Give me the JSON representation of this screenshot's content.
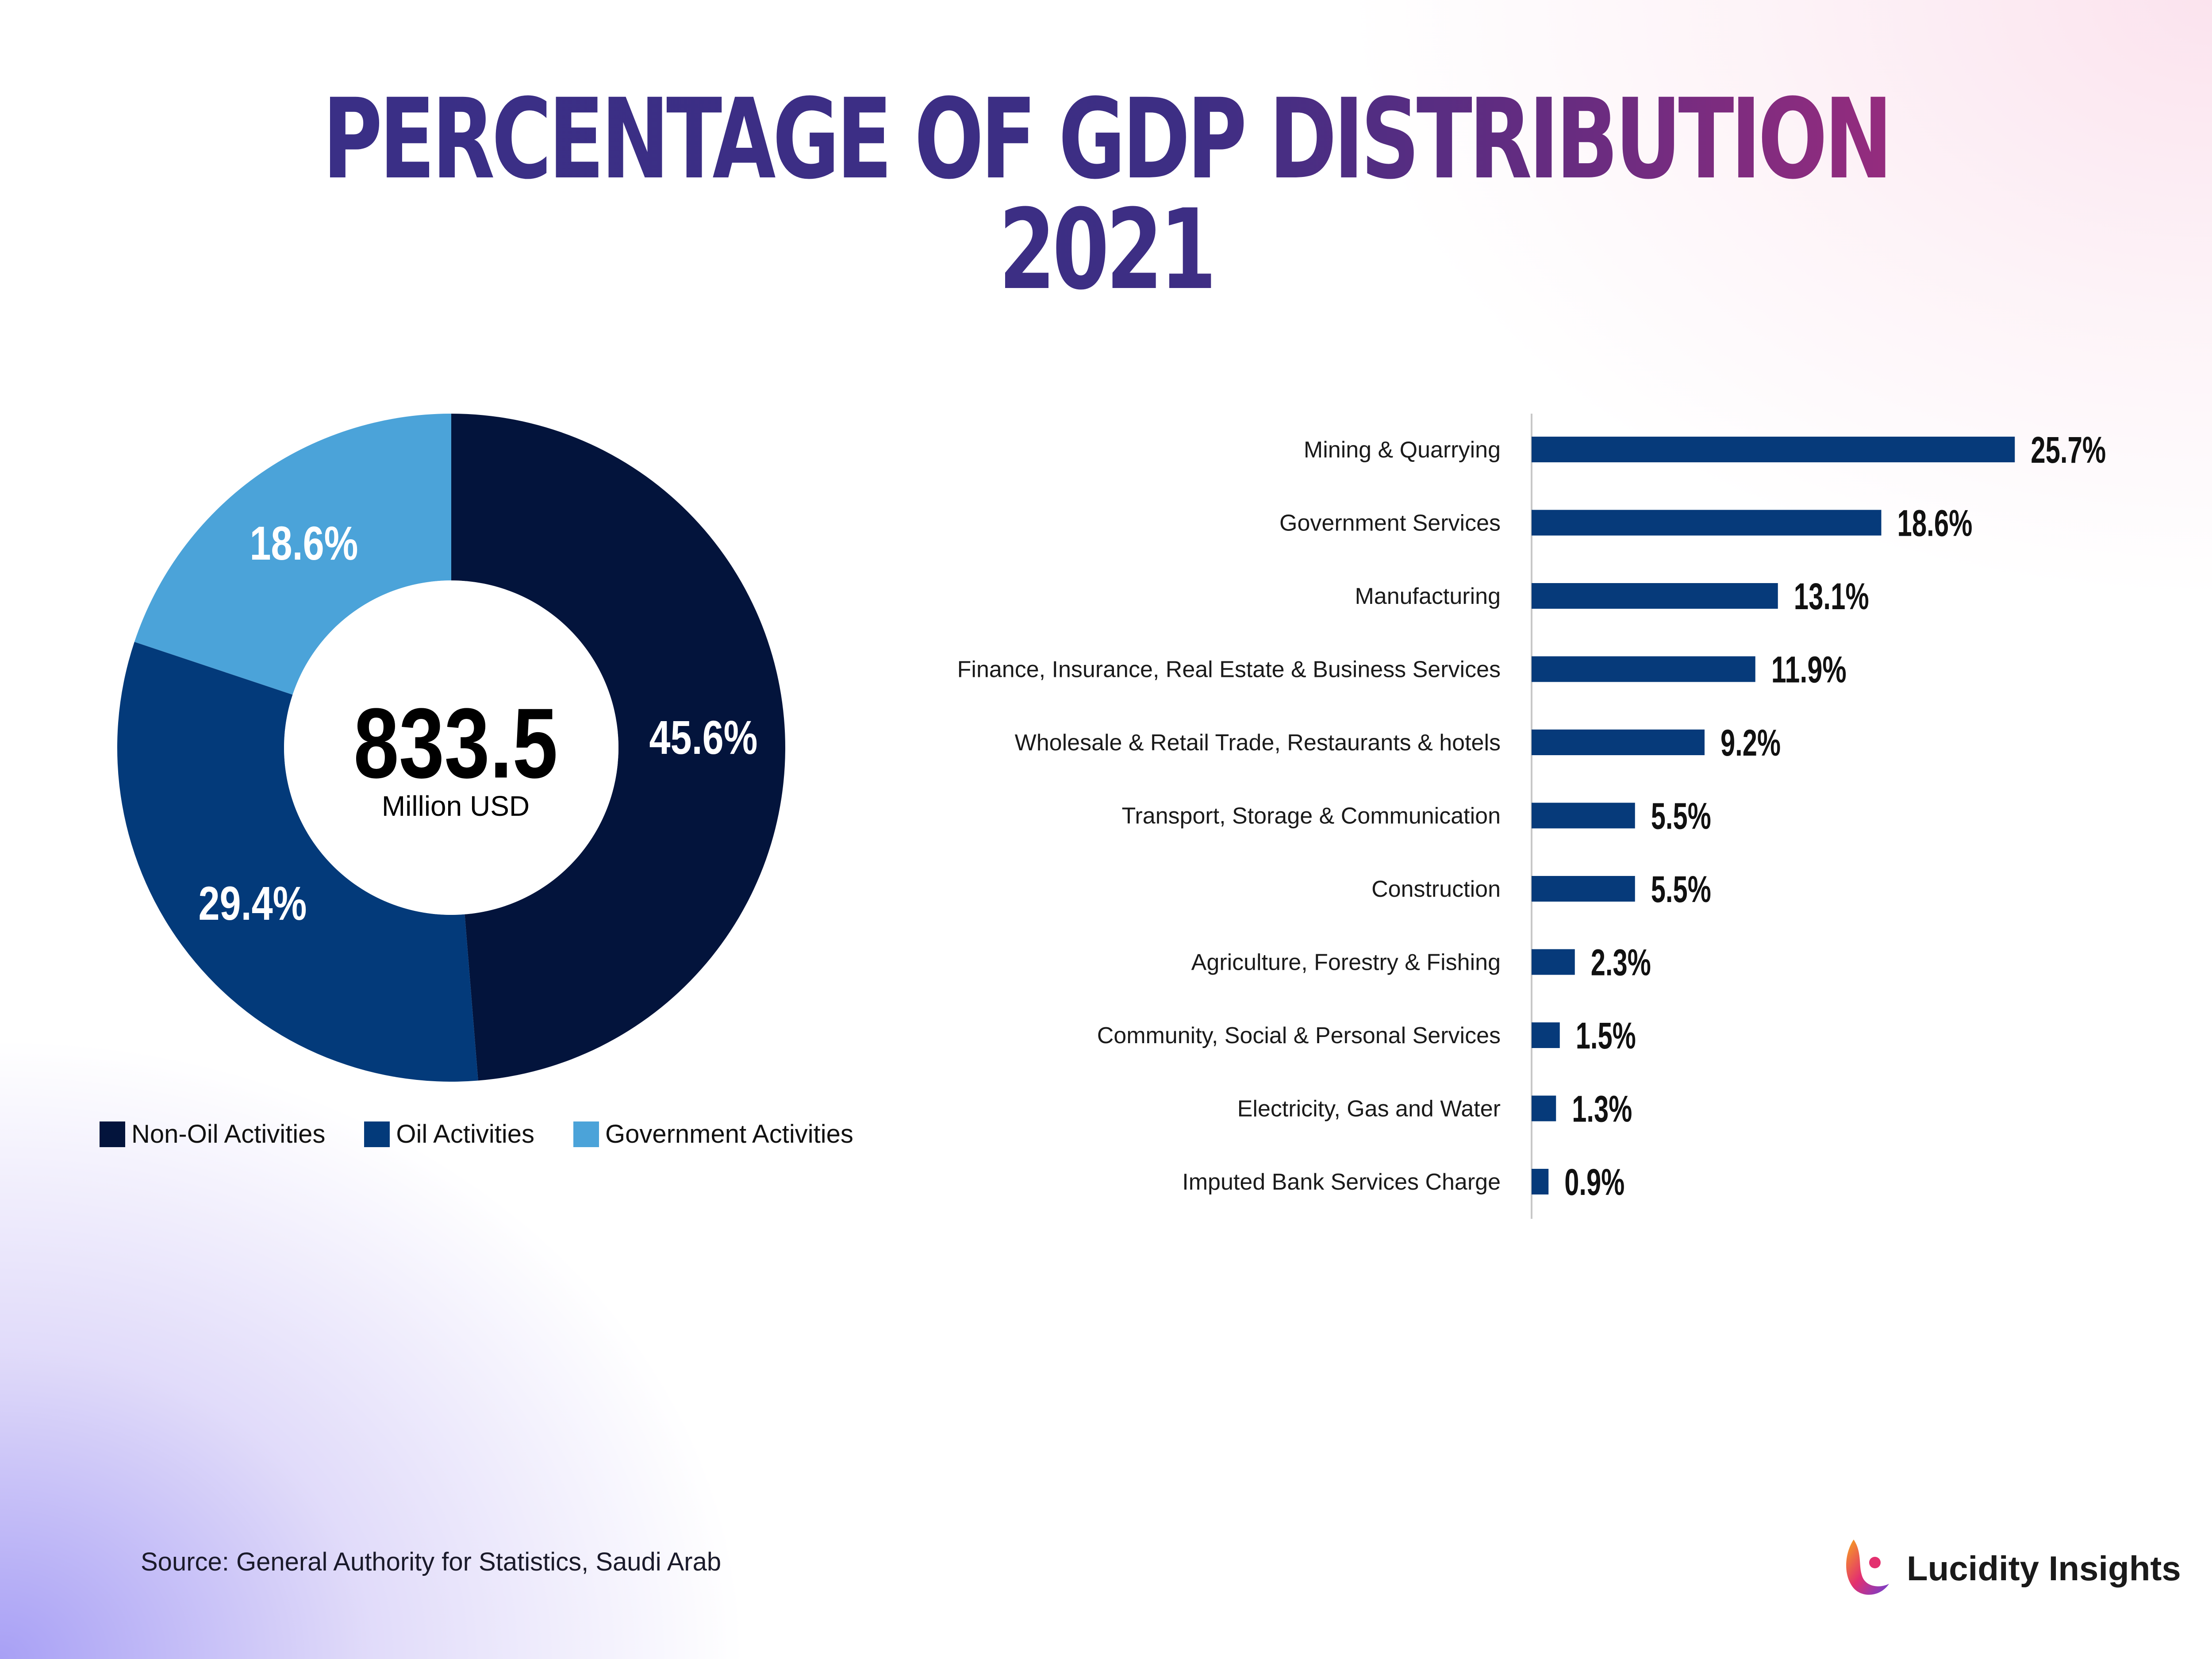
{
  "title": "PERCENTAGE OF GDP DISTRIBUTION 2021",
  "source": "Source: General Authority for Statistics, Saudi Arab",
  "brand": "Lucidity Insights",
  "chart_data": [
    {
      "type": "pie",
      "center_value": "833.5",
      "center_unit": "Million USD",
      "slices": [
        {
          "name": "Non-Oil Activities",
          "value": 45.6,
          "label": "45.6%",
          "color": "#03143c"
        },
        {
          "name": "Oil Activities",
          "value": 29.4,
          "label": "29.4%",
          "color": "#033a7a"
        },
        {
          "name": "Government Activities",
          "value": 18.6,
          "label": "18.6%",
          "color": "#4ba3d9"
        }
      ],
      "legend": [
        "Non-Oil Activities",
        "Oil Activities",
        "Government Activities"
      ]
    },
    {
      "type": "bar",
      "orientation": "horizontal",
      "bar_color": "#063a7a",
      "categories": [
        "Mining & Quarrying",
        "Government Services",
        "Manufacturing",
        "Finance, Insurance, Real Estate & Business Services",
        "Wholesale & Retail Trade, Restaurants & hotels",
        "Transport, Storage & Communication",
        "Construction",
        "Agriculture, Forestry & Fishing",
        "Community, Social & Personal Services",
        "Electricity, Gas and Water",
        "Imputed Bank Services Charge"
      ],
      "values": [
        25.7,
        18.6,
        13.1,
        11.9,
        9.2,
        5.5,
        5.5,
        2.3,
        1.5,
        1.3,
        0.9
      ],
      "labels": [
        "25.7%",
        "18.6%",
        "13.1%",
        "11.9%",
        "9.2%",
        "5.5%",
        "5.5%",
        "2.3%",
        "1.5%",
        "1.3%",
        "0.9%"
      ]
    }
  ]
}
